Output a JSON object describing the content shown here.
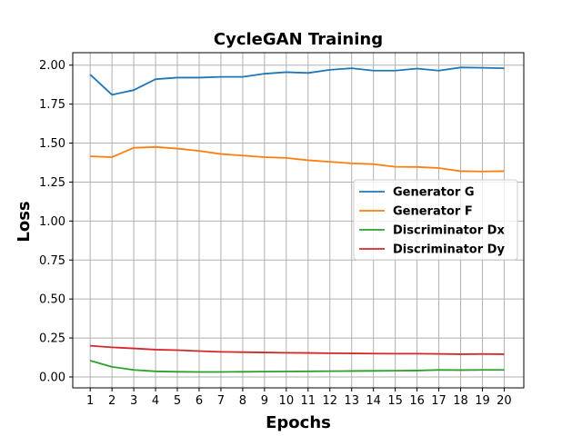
{
  "chart_data": {
    "type": "line",
    "title": "CycleGAN Training",
    "xlabel": "Epochs",
    "ylabel": "Loss",
    "x": [
      1,
      2,
      3,
      4,
      5,
      6,
      7,
      8,
      9,
      10,
      11,
      12,
      13,
      14,
      15,
      16,
      17,
      18,
      19,
      20
    ],
    "xlim": [
      0.2,
      20.9
    ],
    "ylim": [
      -0.07,
      2.08
    ],
    "yticks": [
      0.0,
      0.25,
      0.5,
      0.75,
      1.0,
      1.25,
      1.5,
      1.75,
      2.0
    ],
    "ytick_labels": [
      "0.00",
      "0.25",
      "0.50",
      "0.75",
      "1.00",
      "1.25",
      "1.50",
      "1.75",
      "2.00"
    ],
    "grid": true,
    "legend_position": "center-right",
    "series": [
      {
        "name": "Generator G",
        "color": "#1f77b4",
        "values": [
          1.94,
          1.81,
          1.84,
          1.91,
          1.92,
          1.92,
          1.925,
          1.925,
          1.945,
          1.955,
          1.95,
          1.97,
          1.98,
          1.965,
          1.965,
          1.978,
          1.965,
          1.985,
          1.983,
          1.98
        ]
      },
      {
        "name": "Generator F",
        "color": "#ff7f0e",
        "values": [
          1.415,
          1.41,
          1.47,
          1.475,
          1.465,
          1.45,
          1.43,
          1.42,
          1.41,
          1.405,
          1.39,
          1.38,
          1.37,
          1.365,
          1.348,
          1.347,
          1.34,
          1.32,
          1.318,
          1.32
        ]
      },
      {
        "name": "Discriminator Dx",
        "color": "#2ca02c",
        "values": [
          0.105,
          0.065,
          0.045,
          0.036,
          0.033,
          0.032,
          0.032,
          0.033,
          0.034,
          0.035,
          0.036,
          0.037,
          0.038,
          0.039,
          0.04,
          0.041,
          0.045,
          0.044,
          0.045,
          0.045
        ]
      },
      {
        "name": "Discriminator Dy",
        "color": "#d62728",
        "values": [
          0.2,
          0.19,
          0.183,
          0.175,
          0.172,
          0.166,
          0.161,
          0.159,
          0.157,
          0.155,
          0.154,
          0.152,
          0.151,
          0.15,
          0.149,
          0.149,
          0.148,
          0.146,
          0.147,
          0.146
        ]
      }
    ]
  }
}
